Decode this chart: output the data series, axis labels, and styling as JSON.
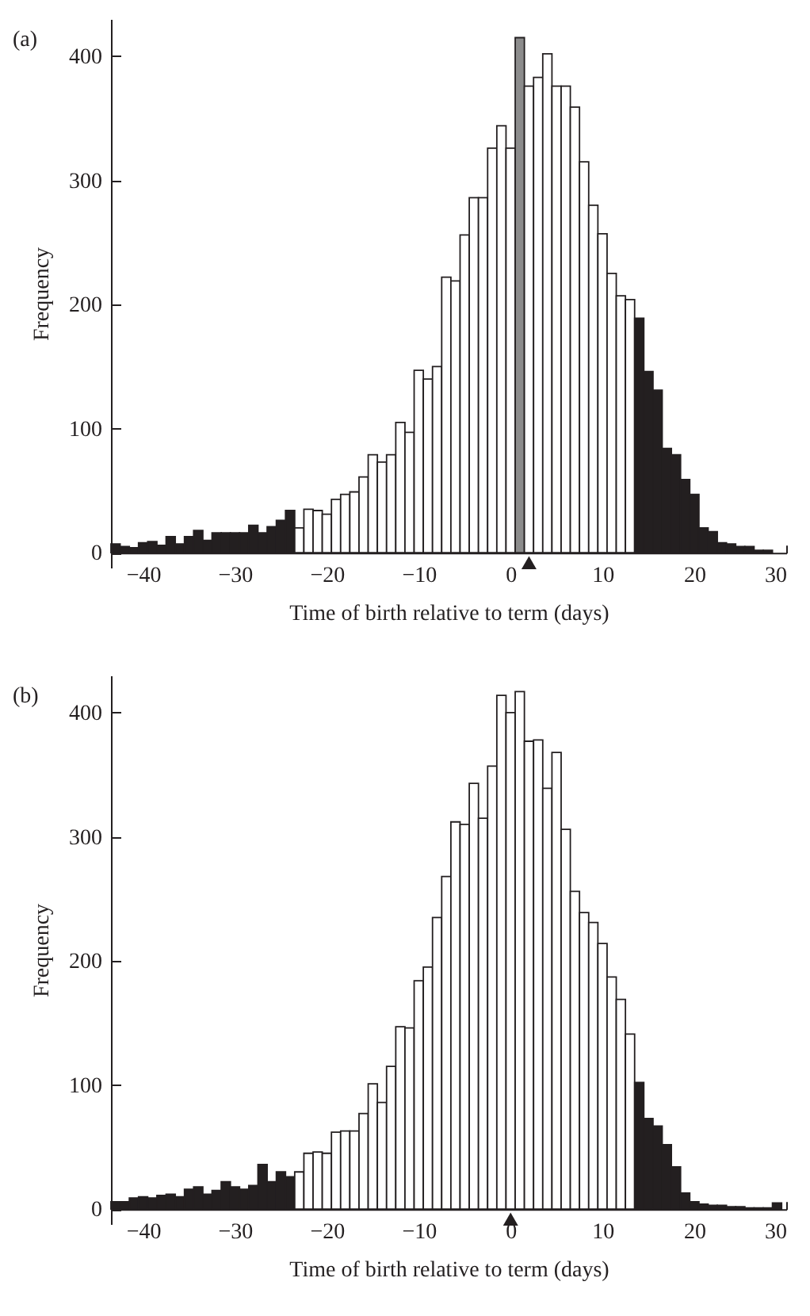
{
  "chart_data": [
    {
      "type": "histogram",
      "title": "(a)",
      "xlabel": "Time of birth relative to term (days)",
      "ylabel": "Frequency",
      "bins": [
        -43.5,
        -42.5,
        -41.5,
        -40.5,
        -39.5,
        -38.5,
        -37.5,
        -36.5,
        -35.5,
        -34.5,
        -33.5,
        -32.5,
        -31.5,
        -30.5,
        -29.5,
        -28.5,
        -27.5,
        -26.5,
        -25.5,
        -24.5,
        -23.5,
        -22.5,
        -21.5,
        -20.5,
        -19.5,
        -18.5,
        -17.5,
        -16.5,
        -15.5,
        -14.5,
        -13.5,
        -12.5,
        -11.5,
        -10.5,
        -9.5,
        -8.5,
        -7.5,
        -6.5,
        -5.5,
        -4.5,
        -3.5,
        -2.5,
        -1.5,
        -0.5,
        0.5,
        1.5,
        2.5,
        3.5,
        4.5,
        5.5,
        6.5,
        7.5,
        8.5,
        9.5,
        10.5,
        11.5,
        12.5,
        13.5,
        14.5,
        15.5,
        16.5,
        17.5,
        18.5,
        19.5,
        20.5,
        21.5,
        22.5,
        23.5,
        24.5,
        25.5,
        26.5,
        27.5,
        28.5
      ],
      "values": [
        7,
        5,
        4,
        8,
        9,
        6,
        13,
        7,
        13,
        18,
        10,
        16,
        16,
        16,
        16,
        22,
        16,
        21,
        26,
        34,
        20,
        35,
        34,
        31,
        43,
        47,
        49,
        61,
        79,
        73,
        79,
        105,
        97,
        147,
        140,
        150,
        222,
        219,
        256,
        286,
        286,
        326,
        344,
        326,
        415,
        376,
        383,
        402,
        376,
        376,
        359,
        315,
        280,
        257,
        225,
        207,
        204,
        189,
        146,
        131,
        84,
        79,
        59,
        47,
        20,
        17,
        8,
        7,
        5,
        5,
        2,
        2
      ],
      "colors": [
        "#231f20",
        "#231f20",
        "#231f20",
        "#231f20",
        "#231f20",
        "#231f20",
        "#231f20",
        "#231f20",
        "#231f20",
        "#231f20",
        "#231f20",
        "#231f20",
        "#231f20",
        "#231f20",
        "#231f20",
        "#231f20",
        "#231f20",
        "#231f20",
        "#231f20",
        "#231f20",
        "#ffffff",
        "#ffffff",
        "#ffffff",
        "#ffffff",
        "#ffffff",
        "#ffffff",
        "#ffffff",
        "#ffffff",
        "#ffffff",
        "#ffffff",
        "#ffffff",
        "#ffffff",
        "#ffffff",
        "#ffffff",
        "#ffffff",
        "#ffffff",
        "#ffffff",
        "#ffffff",
        "#ffffff",
        "#ffffff",
        "#ffffff",
        "#ffffff",
        "#ffffff",
        "#ffffff",
        "#8c8c8c",
        "#ffffff",
        "#ffffff",
        "#ffffff",
        "#ffffff",
        "#ffffff",
        "#ffffff",
        "#ffffff",
        "#ffffff",
        "#ffffff",
        "#ffffff",
        "#ffffff",
        "#ffffff",
        "#231f20",
        "#231f20",
        "#231f20",
        "#231f20",
        "#231f20",
        "#231f20",
        "#231f20",
        "#231f20",
        "#231f20",
        "#231f20",
        "#231f20",
        "#231f20",
        "#231f20",
        "#231f20",
        "#231f20"
      ],
      "xlim": [
        -43.5,
        30
      ],
      "xticks": [
        {
          "value": -40,
          "label": "−40"
        },
        {
          "value": -30,
          "label": "−30"
        },
        {
          "value": -20,
          "label": "−20"
        },
        {
          "value": -10,
          "label": "−10"
        },
        0,
        10,
        20,
        30
      ],
      "ylim": [
        -12,
        430
      ],
      "yticks": [
        0,
        100,
        200,
        300,
        400
      ],
      "series": [
        {
          "type": "scatter",
          "x": [
            2
          ],
          "values": [
            -8
          ],
          "color": "#231f20"
        }
      ],
      "marker": "triangle"
    },
    {
      "type": "histogram",
      "title": "(b)",
      "xlabel": "Time of birth relative to term (days)",
      "ylabel": "Frequency",
      "bins": [
        -43.5,
        -42.5,
        -41.5,
        -40.5,
        -39.5,
        -38.5,
        -37.5,
        -36.5,
        -35.5,
        -34.5,
        -33.5,
        -32.5,
        -31.5,
        -30.5,
        -29.5,
        -28.5,
        -27.5,
        -26.5,
        -25.5,
        -24.5,
        -23.5,
        -22.5,
        -21.5,
        -20.5,
        -19.5,
        -18.5,
        -17.5,
        -16.5,
        -15.5,
        -14.5,
        -13.5,
        -12.5,
        -11.5,
        -10.5,
        -9.5,
        -8.5,
        -7.5,
        -6.5,
        -5.5,
        -4.5,
        -3.5,
        -2.5,
        -1.5,
        -0.5,
        0.5,
        1.5,
        2.5,
        3.5,
        4.5,
        5.5,
        6.5,
        7.5,
        8.5,
        9.5,
        10.5,
        11.5,
        12.5,
        13.5,
        14.5,
        15.5,
        16.5,
        17.5,
        18.5,
        19.5,
        20.5,
        21.5,
        22.5,
        23.5,
        24.5,
        25.5,
        26.5,
        27.5,
        28.5,
        29.5
      ],
      "values": [
        6,
        6,
        9,
        10,
        9,
        11,
        12,
        10,
        16,
        18,
        12,
        15,
        22,
        18,
        16,
        19,
        36,
        22,
        30,
        26,
        30,
        45,
        46,
        45,
        62,
        63,
        63,
        77,
        101,
        86,
        115,
        147,
        146,
        184,
        195,
        235,
        268,
        312,
        310,
        343,
        315,
        357,
        414,
        400,
        417,
        377,
        378,
        339,
        368,
        306,
        256,
        239,
        231,
        214,
        187,
        169,
        141,
        102,
        73,
        67,
        52,
        34,
        13,
        6,
        4,
        3,
        3,
        2,
        2,
        1,
        1,
        1,
        5
      ],
      "colors": [
        "#231f20",
        "#231f20",
        "#231f20",
        "#231f20",
        "#231f20",
        "#231f20",
        "#231f20",
        "#231f20",
        "#231f20",
        "#231f20",
        "#231f20",
        "#231f20",
        "#231f20",
        "#231f20",
        "#231f20",
        "#231f20",
        "#231f20",
        "#231f20",
        "#231f20",
        "#231f20",
        "#ffffff",
        "#ffffff",
        "#ffffff",
        "#ffffff",
        "#ffffff",
        "#ffffff",
        "#ffffff",
        "#ffffff",
        "#ffffff",
        "#ffffff",
        "#ffffff",
        "#ffffff",
        "#ffffff",
        "#ffffff",
        "#ffffff",
        "#ffffff",
        "#ffffff",
        "#ffffff",
        "#ffffff",
        "#ffffff",
        "#ffffff",
        "#ffffff",
        "#ffffff",
        "#ffffff",
        "#ffffff",
        "#ffffff",
        "#ffffff",
        "#ffffff",
        "#ffffff",
        "#ffffff",
        "#ffffff",
        "#ffffff",
        "#ffffff",
        "#ffffff",
        "#ffffff",
        "#ffffff",
        "#ffffff",
        "#231f20",
        "#231f20",
        "#231f20",
        "#231f20",
        "#231f20",
        "#231f20",
        "#231f20",
        "#231f20",
        "#231f20",
        "#231f20",
        "#231f20",
        "#231f20",
        "#231f20",
        "#231f20",
        "#231f20",
        "#231f20"
      ],
      "xlim": [
        -43.5,
        30
      ],
      "xticks": [
        {
          "value": -40,
          "label": "−40"
        },
        {
          "value": -30,
          "label": "−30"
        },
        {
          "value": -20,
          "label": "−20"
        },
        {
          "value": -10,
          "label": "−10"
        },
        0,
        10,
        20,
        30
      ],
      "ylim": [
        -12,
        430
      ],
      "yticks": [
        0,
        100,
        200,
        300,
        400
      ],
      "series": [
        {
          "type": "scatter",
          "x": [
            0
          ],
          "values": [
            -8
          ],
          "color": "#231f20"
        }
      ],
      "marker": "triangle"
    }
  ]
}
